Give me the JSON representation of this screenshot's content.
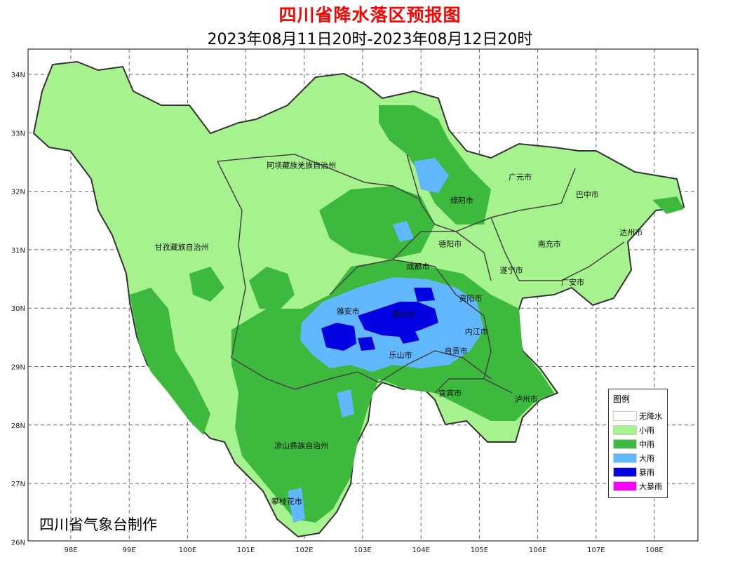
{
  "title": "四川省降水落区预报图",
  "subtitle": "2023年08月11日20时-2023年08月12日20时",
  "credit": "四川省气象台制作",
  "axes": {
    "lon_ticks": [
      "98E",
      "99E",
      "100E",
      "101E",
      "102E",
      "103E",
      "104E",
      "105E",
      "106E",
      "107E",
      "108E"
    ],
    "lat_ticks": [
      "34N",
      "33N",
      "32N",
      "31N",
      "30N",
      "29N",
      "28N",
      "27N",
      "26N"
    ]
  },
  "cities": [
    {
      "name": "阿坝藏族羌族自治州",
      "lon": 101.95,
      "lat": 32.4
    },
    {
      "name": "甘孜藏族自治州",
      "lon": 99.9,
      "lat": 31.0
    },
    {
      "name": "广元市",
      "lon": 105.7,
      "lat": 32.2
    },
    {
      "name": "巴中市",
      "lon": 106.85,
      "lat": 31.9
    },
    {
      "name": "绵阳市",
      "lon": 104.7,
      "lat": 31.8
    },
    {
      "name": "达州市",
      "lon": 107.6,
      "lat": 31.25
    },
    {
      "name": "德阳市",
      "lon": 104.5,
      "lat": 31.05
    },
    {
      "name": "南充市",
      "lon": 106.2,
      "lat": 31.05
    },
    {
      "name": "成都市",
      "lon": 103.95,
      "lat": 30.67
    },
    {
      "name": "遂宁市",
      "lon": 105.55,
      "lat": 30.6
    },
    {
      "name": "广安市",
      "lon": 106.6,
      "lat": 30.4
    },
    {
      "name": "资阳市",
      "lon": 104.85,
      "lat": 30.12
    },
    {
      "name": "雅安市",
      "lon": 102.75,
      "lat": 29.9
    },
    {
      "name": "眉山市",
      "lon": 103.7,
      "lat": 29.85
    },
    {
      "name": "内江市",
      "lon": 104.95,
      "lat": 29.55
    },
    {
      "name": "乐山市",
      "lon": 103.65,
      "lat": 29.15
    },
    {
      "name": "自贡市",
      "lon": 104.6,
      "lat": 29.22
    },
    {
      "name": "宜宾市",
      "lon": 104.5,
      "lat": 28.5
    },
    {
      "name": "泸州市",
      "lon": 105.8,
      "lat": 28.4
    },
    {
      "name": "凉山彝族自治州",
      "lon": 101.95,
      "lat": 27.6
    },
    {
      "name": "攀枝花市",
      "lon": 101.7,
      "lat": 26.65
    }
  ],
  "legend": {
    "title": "图例",
    "items": [
      {
        "label": "无降水",
        "color": "#ffffff"
      },
      {
        "label": "小雨",
        "color": "#a6f28f"
      },
      {
        "label": "中雨",
        "color": "#3dba3d"
      },
      {
        "label": "大雨",
        "color": "#61b8ff"
      },
      {
        "label": "暴雨",
        "color": "#0000e1"
      },
      {
        "label": "大暴雨",
        "color": "#fa00fa"
      }
    ]
  }
}
